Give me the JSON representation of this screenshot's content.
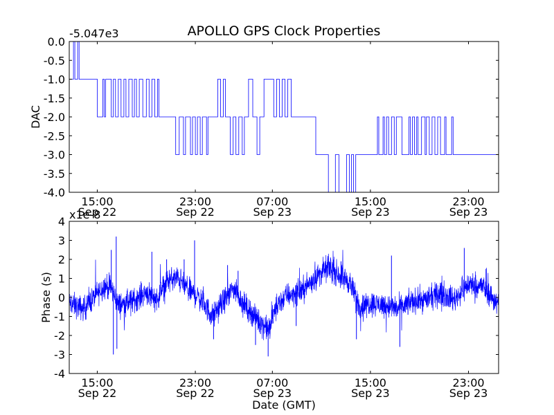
{
  "chart_data": [
    {
      "type": "line",
      "title": "APOLLO GPS Clock Properties",
      "ylabel": "DAC",
      "xlabel": "",
      "offset_label": "-5.047e3",
      "ylim": [
        -4.0,
        0.0
      ],
      "xlim_hours": [
        0,
        61.3
      ],
      "yticks": [
        0.0,
        -0.5,
        -1.0,
        -1.5,
        -2.0,
        -2.5,
        -3.0,
        -3.5,
        -4.0
      ],
      "ytick_labels": [
        "0.0",
        "-0.5",
        "-1.0",
        "-1.5",
        "-2.0",
        "-2.5",
        "-3.0",
        "-3.5",
        "-4.0"
      ],
      "xticks": [
        {
          "hours": 4,
          "time": "15:00",
          "date": "Sep 22"
        },
        {
          "hours": 18,
          "time": "23:00",
          "date": "Sep 22"
        },
        {
          "hours": 29,
          "time": "07:00",
          "date": "Sep 23"
        },
        {
          "hours": 43,
          "time": "15:00",
          "date": "Sep 23"
        },
        {
          "hours": 57,
          "time": "23:00",
          "date": "Sep 23"
        }
      ],
      "series": [
        {
          "name": "DAC",
          "color": "#0000ff",
          "steps": [
            [
              0.0,
              -1.0
            ],
            [
              0.6,
              0.0
            ],
            [
              0.8,
              -1.0
            ],
            [
              1.2,
              0.0
            ],
            [
              1.4,
              -1.0
            ],
            [
              4.0,
              -2.0
            ],
            [
              4.8,
              -1.0
            ],
            [
              5.0,
              -2.0
            ],
            [
              5.2,
              -1.0
            ],
            [
              5.8,
              -1.0
            ],
            [
              6.0,
              -2.0
            ],
            [
              6.3,
              -1.0
            ],
            [
              6.6,
              -2.0
            ],
            [
              7.0,
              -1.0
            ],
            [
              7.4,
              -2.0
            ],
            [
              7.8,
              -1.0
            ],
            [
              8.1,
              -2.0
            ],
            [
              8.5,
              -1.0
            ],
            [
              9.0,
              -2.0
            ],
            [
              9.3,
              -1.0
            ],
            [
              9.6,
              -2.0
            ],
            [
              10.0,
              -1.0
            ],
            [
              10.5,
              -2.0
            ],
            [
              11.0,
              -1.0
            ],
            [
              11.4,
              -2.0
            ],
            [
              11.8,
              -1.0
            ],
            [
              12.2,
              -2.0
            ],
            [
              12.6,
              -1.0
            ],
            [
              12.8,
              -2.0
            ],
            [
              15.2,
              -3.0
            ],
            [
              15.7,
              -2.0
            ],
            [
              16.3,
              -3.0
            ],
            [
              16.6,
              -2.0
            ],
            [
              17.3,
              -3.0
            ],
            [
              17.6,
              -2.0
            ],
            [
              18.0,
              -3.0
            ],
            [
              18.3,
              -2.0
            ],
            [
              18.7,
              -3.0
            ],
            [
              19.0,
              -2.0
            ],
            [
              19.6,
              -3.0
            ],
            [
              19.8,
              -2.0
            ],
            [
              20.3,
              -2.0
            ],
            [
              21.2,
              -1.0
            ],
            [
              21.6,
              -2.0
            ],
            [
              22.0,
              -1.0
            ],
            [
              22.3,
              -2.0
            ],
            [
              23.0,
              -3.0
            ],
            [
              23.4,
              -2.0
            ],
            [
              23.8,
              -3.0
            ],
            [
              24.2,
              -2.0
            ],
            [
              24.7,
              -3.0
            ],
            [
              25.0,
              -2.0
            ],
            [
              25.6,
              -1.0
            ],
            [
              26.2,
              -2.0
            ],
            [
              26.8,
              -3.0
            ],
            [
              27.2,
              -2.0
            ],
            [
              27.8,
              -1.0
            ],
            [
              29.2,
              -2.0
            ],
            [
              29.6,
              -1.0
            ],
            [
              30.0,
              -2.0
            ],
            [
              30.4,
              -1.0
            ],
            [
              30.8,
              -2.0
            ],
            [
              31.2,
              -1.0
            ],
            [
              31.7,
              -2.0
            ],
            [
              35.2,
              -3.0
            ],
            [
              37.0,
              -4.0
            ],
            [
              38.0,
              -3.0
            ],
            [
              38.5,
              -4.0
            ],
            [
              39.6,
              -3.0
            ],
            [
              40.0,
              -4.0
            ],
            [
              40.3,
              -3.0
            ],
            [
              40.6,
              -4.0
            ],
            [
              40.9,
              -3.0
            ],
            [
              44.0,
              -2.0
            ],
            [
              44.2,
              -3.0
            ],
            [
              44.8,
              -2.0
            ],
            [
              45.0,
              -3.0
            ],
            [
              45.3,
              -2.0
            ],
            [
              45.6,
              -3.0
            ],
            [
              46.0,
              -2.0
            ],
            [
              46.4,
              -3.0
            ],
            [
              46.7,
              -2.0
            ],
            [
              47.5,
              -3.0
            ],
            [
              48.5,
              -2.0
            ],
            [
              48.7,
              -3.0
            ],
            [
              49.0,
              -2.0
            ],
            [
              49.3,
              -3.0
            ],
            [
              49.6,
              -2.0
            ],
            [
              49.8,
              -3.0
            ],
            [
              50.3,
              -2.0
            ],
            [
              50.8,
              -3.0
            ],
            [
              51.0,
              -2.0
            ],
            [
              51.4,
              -3.0
            ],
            [
              51.8,
              -2.0
            ],
            [
              52.2,
              -3.0
            ],
            [
              52.6,
              -2.0
            ],
            [
              53.0,
              -3.0
            ],
            [
              53.6,
              -2.0
            ],
            [
              53.8,
              -3.0
            ],
            [
              54.6,
              -2.0
            ],
            [
              54.8,
              -3.0
            ],
            [
              61.3,
              -3.0
            ]
          ]
        }
      ]
    },
    {
      "type": "line",
      "title": "",
      "ylabel": "Phase (s)",
      "xlabel": "Date (GMT)",
      "offset_label": "x1e-8",
      "ylim": [
        -4,
        4
      ],
      "xlim_hours": [
        0,
        61.3
      ],
      "yticks": [
        4,
        3,
        2,
        1,
        0,
        -1,
        -2,
        -3,
        -4
      ],
      "ytick_labels": [
        "4",
        "3",
        "2",
        "1",
        "0",
        "-1",
        "-2",
        "-3",
        "-4"
      ],
      "xticks": [
        {
          "hours": 4,
          "time": "15:00",
          "date": "Sep 22"
        },
        {
          "hours": 18,
          "time": "23:00",
          "date": "Sep 22"
        },
        {
          "hours": 29,
          "time": "07:00",
          "date": "Sep 23"
        },
        {
          "hours": 43,
          "time": "15:00",
          "date": "Sep 23"
        },
        {
          "hours": 57,
          "time": "23:00",
          "date": "Sep 23"
        }
      ],
      "series": [
        {
          "name": "Phase",
          "color": "#0000ff",
          "trend": [
            [
              0,
              -0.3
            ],
            [
              2,
              -0.6
            ],
            [
              4,
              0.2
            ],
            [
              5,
              0.6
            ],
            [
              6,
              0.5
            ],
            [
              7,
              -0.4
            ],
            [
              9,
              -0.2
            ],
            [
              11,
              0.3
            ],
            [
              12.5,
              -0.1
            ],
            [
              14,
              0.9
            ],
            [
              15.5,
              1.0
            ],
            [
              17,
              0.4
            ],
            [
              18.5,
              0.0
            ],
            [
              20.5,
              -1.0
            ],
            [
              22,
              -0.2
            ],
            [
              23.5,
              0.5
            ],
            [
              25,
              -0.4
            ],
            [
              27,
              -1.2
            ],
            [
              28.5,
              -1.7
            ],
            [
              29.5,
              -0.5
            ],
            [
              31,
              0.1
            ],
            [
              33,
              0.3
            ],
            [
              35,
              1.0
            ],
            [
              37,
              1.6
            ],
            [
              38.5,
              1.2
            ],
            [
              40,
              0.8
            ],
            [
              41.5,
              -0.5
            ],
            [
              43,
              -0.3
            ],
            [
              45,
              -0.4
            ],
            [
              47,
              -0.6
            ],
            [
              49,
              -0.2
            ],
            [
              51,
              -0.1
            ],
            [
              53,
              0.2
            ],
            [
              55,
              -0.1
            ],
            [
              57,
              0.7
            ],
            [
              59,
              0.6
            ],
            [
              61.3,
              -0.4
            ]
          ],
          "spikes": [
            [
              6.7,
              3.2
            ],
            [
              6.0,
              2.5
            ],
            [
              6.3,
              -3.0
            ],
            [
              6.8,
              -2.7
            ],
            [
              11.8,
              2.4
            ],
            [
              13.9,
              2.0
            ],
            [
              16.4,
              2.0
            ],
            [
              17.9,
              3.0
            ],
            [
              20.6,
              -2.2
            ],
            [
              22.6,
              1.7
            ],
            [
              24.1,
              1.4
            ],
            [
              26.6,
              -2.5
            ],
            [
              27.8,
              -1.9
            ],
            [
              28.4,
              -3.1
            ],
            [
              32.4,
              -1.5
            ],
            [
              37.3,
              2.1
            ],
            [
              38.8,
              1.9
            ],
            [
              41.0,
              -2.2
            ],
            [
              46.0,
              2.2
            ],
            [
              47.2,
              -2.6
            ],
            [
              56.4,
              2.6
            ],
            [
              59.5,
              1.5
            ]
          ],
          "noise_amplitude": 0.45
        }
      ]
    }
  ]
}
